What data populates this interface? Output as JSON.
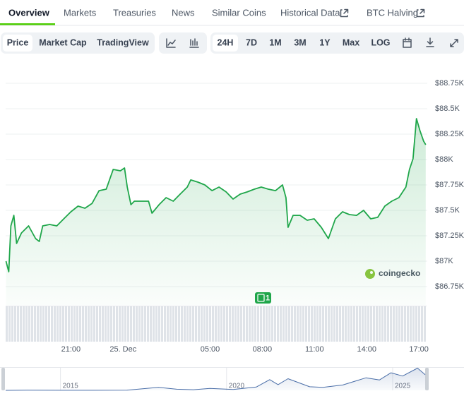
{
  "tabs": [
    "Overview",
    "Markets",
    "Treasuries",
    "News",
    "Similar Coins",
    "Historical Data",
    "BTC Halving"
  ],
  "toolbar": {
    "views": [
      "Price",
      "Market Cap",
      "TradingView"
    ],
    "ranges": [
      "24H",
      "7D",
      "1M",
      "3M",
      "1Y",
      "Max",
      "LOG"
    ]
  },
  "watermark": "coingecko",
  "event_badge": "1",
  "chart_data": [
    {
      "type": "line",
      "color": "#1fa64a",
      "fill": true,
      "grid": true,
      "x": [
        17.27,
        17.43,
        17.55,
        17.72,
        17.88,
        18.16,
        18.57,
        18.97,
        19.18,
        19.38,
        19.78,
        20.19,
        20.59,
        21,
        21.41,
        21.81,
        22.22,
        22.62,
        23.03,
        23.43,
        23.84,
        24.08,
        24.24,
        24.45,
        24.65,
        25.05,
        25.46,
        25.66,
        26.07,
        26.47,
        26.88,
        27.28,
        27.69,
        27.89,
        28.3,
        28.7,
        29.11,
        29.51,
        29.92,
        30.32,
        30.73,
        31.13,
        31.54,
        31.94,
        32.35,
        32.76,
        33.16,
        33.36,
        33.48,
        33.77,
        34.17,
        34.58,
        34.98,
        35.39,
        35.8,
        36.2,
        36.61,
        37.01,
        37.42,
        37.82,
        38.23,
        38.63,
        39.04,
        39.44,
        39.85,
        40.25,
        40.46,
        40.66,
        40.86,
        41.06,
        41.27,
        41.39
      ],
      "values": [
        87000,
        86896,
        87347,
        87451,
        87174,
        87278,
        87347,
        87222,
        87194,
        87347,
        87361,
        87347,
        87417,
        87486,
        87542,
        87521,
        87569,
        87694,
        87708,
        87903,
        87889,
        87917,
        87729,
        87556,
        87590,
        87590,
        87590,
        87472,
        87556,
        87625,
        87590,
        87660,
        87729,
        87799,
        87778,
        87750,
        87694,
        87729,
        87681,
        87611,
        87660,
        87681,
        87708,
        87729,
        87708,
        87694,
        87750,
        87625,
        87333,
        87451,
        87451,
        87403,
        87417,
        87333,
        87222,
        87417,
        87486,
        87458,
        87451,
        87500,
        87417,
        87431,
        87542,
        87590,
        87625,
        87729,
        87903,
        88007,
        88403,
        88285,
        88181,
        88146
      ],
      "xlim": [
        17.25,
        41.4
      ],
      "xticks": [
        {
          "value": 21,
          "label": "21:00"
        },
        {
          "value": 24,
          "label": "25. Dec"
        },
        {
          "value": 29,
          "label": "05:00"
        },
        {
          "value": 32,
          "label": "08:00"
        },
        {
          "value": 35,
          "label": "11:00"
        },
        {
          "value": 38,
          "label": "14:00"
        },
        {
          "value": 41,
          "label": "17:00"
        }
      ],
      "ylim": [
        86650,
        88900
      ],
      "yticks": [
        {
          "value": 86750,
          "label": "$86.75K"
        },
        {
          "value": 87000,
          "label": "$87K"
        },
        {
          "value": 87250,
          "label": "$87.25K"
        },
        {
          "value": 87500,
          "label": "$87.5K"
        },
        {
          "value": 87750,
          "label": "$87.75K"
        },
        {
          "value": 88000,
          "label": "$88K"
        },
        {
          "value": 88250,
          "label": "$88.25K"
        },
        {
          "value": 88500,
          "label": "$88.5K"
        },
        {
          "value": 88750,
          "label": "$88.75K"
        }
      ]
    },
    {
      "type": "line",
      "color": "#4a6ea8",
      "fill": true,
      "grid": true,
      "x": [
        2013.35,
        2014,
        2015,
        2016,
        2017,
        2017.95,
        2018.5,
        2019,
        2019.5,
        2020.2,
        2020.9,
        2021.3,
        2021.55,
        2021.85,
        2022.5,
        2022.9,
        2023.5,
        2024.2,
        2024.6,
        2024.95,
        2025.3,
        2025.75,
        2025.98
      ],
      "values": [
        130,
        600,
        250,
        430,
        1000,
        17000,
        6500,
        3700,
        11000,
        5000,
        19000,
        60000,
        32000,
        65000,
        20000,
        16500,
        30000,
        70000,
        58000,
        98000,
        80000,
        124000,
        87000
      ],
      "xlim": [
        2013.35,
        2026
      ],
      "xticks": [
        2015,
        2020,
        2025
      ],
      "ylim": [
        0,
        130000
      ]
    }
  ]
}
